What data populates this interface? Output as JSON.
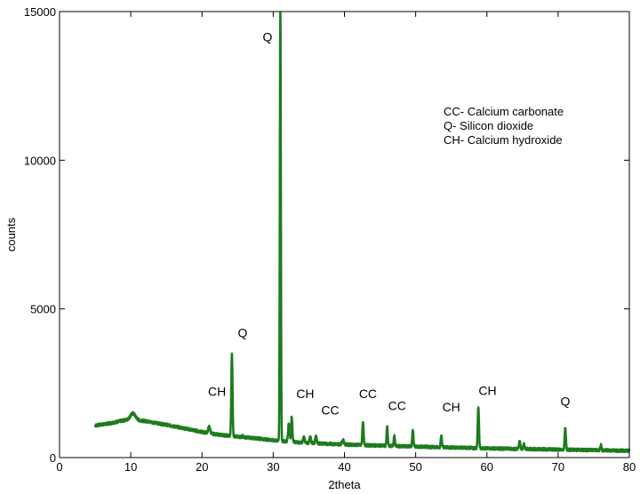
{
  "chart_data": {
    "type": "line",
    "xlabel": "2theta",
    "ylabel": "counts",
    "xlim": [
      0,
      80
    ],
    "ylim": [
      0,
      15000
    ],
    "xticks": [
      0,
      10,
      20,
      30,
      40,
      50,
      60,
      70,
      80
    ],
    "yticks": [
      0,
      5000,
      10000,
      15000
    ],
    "grid": false,
    "series": [
      {
        "color": "#1e7b1e",
        "background": [
          [
            5,
            1080
          ],
          [
            7,
            1150
          ],
          [
            9,
            1250
          ],
          [
            10,
            1280
          ],
          [
            12,
            1230
          ],
          [
            15,
            1100
          ],
          [
            18,
            960
          ],
          [
            20,
            860
          ],
          [
            22,
            780
          ],
          [
            25,
            700
          ],
          [
            28,
            640
          ],
          [
            30,
            580
          ],
          [
            32,
            540
          ],
          [
            35,
            490
          ],
          [
            40,
            440
          ],
          [
            45,
            400
          ],
          [
            50,
            370
          ],
          [
            55,
            340
          ],
          [
            60,
            310
          ],
          [
            65,
            290
          ],
          [
            70,
            270
          ],
          [
            75,
            250
          ],
          [
            80,
            230
          ]
        ],
        "peaks": [
          [
            10.3,
            1480,
            0.5
          ],
          [
            21.0,
            1030,
            0.2
          ],
          [
            24.2,
            3500,
            0.12
          ],
          [
            25.7,
            720,
            0.15
          ],
          [
            31.0,
            15000,
            0.1
          ],
          [
            32.2,
            1150,
            0.15
          ],
          [
            32.6,
            1380,
            0.12
          ],
          [
            34.3,
            700,
            0.15
          ],
          [
            35.2,
            680,
            0.15
          ],
          [
            36.0,
            700,
            0.15
          ],
          [
            39.8,
            580,
            0.2
          ],
          [
            42.6,
            1200,
            0.12
          ],
          [
            46.0,
            1030,
            0.12
          ],
          [
            47.0,
            720,
            0.12
          ],
          [
            49.6,
            920,
            0.12
          ],
          [
            53.6,
            720,
            0.12
          ],
          [
            58.8,
            1700,
            0.12
          ],
          [
            64.6,
            580,
            0.12
          ],
          [
            65.2,
            460,
            0.12
          ],
          [
            71.0,
            1000,
            0.12
          ],
          [
            76.0,
            420,
            0.12
          ]
        ]
      }
    ],
    "annotations": [
      {
        "text": "Q",
        "x": 29.2,
        "y": 14000
      },
      {
        "text": "Q",
        "x": 25.7,
        "y": 4050
      },
      {
        "text": "CH",
        "x": 22.1,
        "y": 2080
      },
      {
        "text": "CH",
        "x": 34.5,
        "y": 2000
      },
      {
        "text": "CC",
        "x": 38.0,
        "y": 1450
      },
      {
        "text": "CC",
        "x": 43.3,
        "y": 2000
      },
      {
        "text": "CC",
        "x": 47.4,
        "y": 1600
      },
      {
        "text": "CH",
        "x": 55.0,
        "y": 1550
      },
      {
        "text": "CH",
        "x": 60.1,
        "y": 2100
      },
      {
        "text": "Q",
        "x": 71.0,
        "y": 1750
      }
    ],
    "legend": {
      "placement": "top-right",
      "entries": [
        "CC- Calcium carbonate",
        "Q- Silicon dioxide",
        "CH- Calcium hydroxide"
      ]
    }
  }
}
